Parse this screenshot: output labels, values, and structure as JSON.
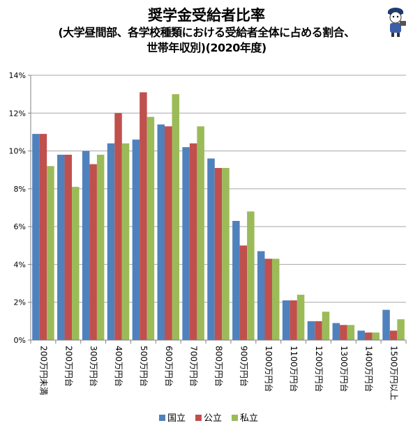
{
  "title": "奨学金受給者比率",
  "subtitle_line1": "(大学昼間部、各学校種類における受給者全体に占める割合、",
  "subtitle_line2": "世帯年収別)(2020年度)",
  "colors": {
    "国立": "#4f81bd",
    "公立": "#c0504d",
    "私立": "#9bbb59"
  },
  "mascot_icon": "reporter-mascot-icon",
  "chart_data": {
    "type": "bar",
    "categories": [
      "200万円未満",
      "200万円台",
      "300万円台",
      "400万円台",
      "500万円台",
      "600万円台",
      "700万円台",
      "800万円台",
      "900万円台",
      "1000万円台",
      "1100万円台",
      "1200万円台",
      "1300万円台",
      "1400万円台",
      "1500万円以上"
    ],
    "series": [
      {
        "name": "国立",
        "values": [
          10.9,
          9.8,
          10.0,
          10.4,
          10.6,
          11.4,
          10.2,
          9.6,
          6.3,
          4.7,
          2.1,
          1.0,
          0.9,
          0.5,
          1.6
        ]
      },
      {
        "name": "公立",
        "values": [
          10.9,
          9.8,
          9.3,
          12.0,
          13.1,
          11.3,
          10.4,
          9.1,
          5.0,
          4.3,
          2.1,
          1.0,
          0.8,
          0.4,
          0.5
        ]
      },
      {
        "name": "私立",
        "values": [
          9.2,
          8.1,
          9.8,
          10.4,
          11.8,
          13.0,
          11.3,
          9.1,
          6.8,
          4.3,
          2.4,
          1.5,
          0.8,
          0.4,
          1.1
        ]
      }
    ],
    "yticks": [
      "0%",
      "2%",
      "4%",
      "6%",
      "8%",
      "10%",
      "12%",
      "14%"
    ],
    "ylim": [
      0,
      14
    ],
    "grid": true,
    "legend_position": "bottom"
  }
}
